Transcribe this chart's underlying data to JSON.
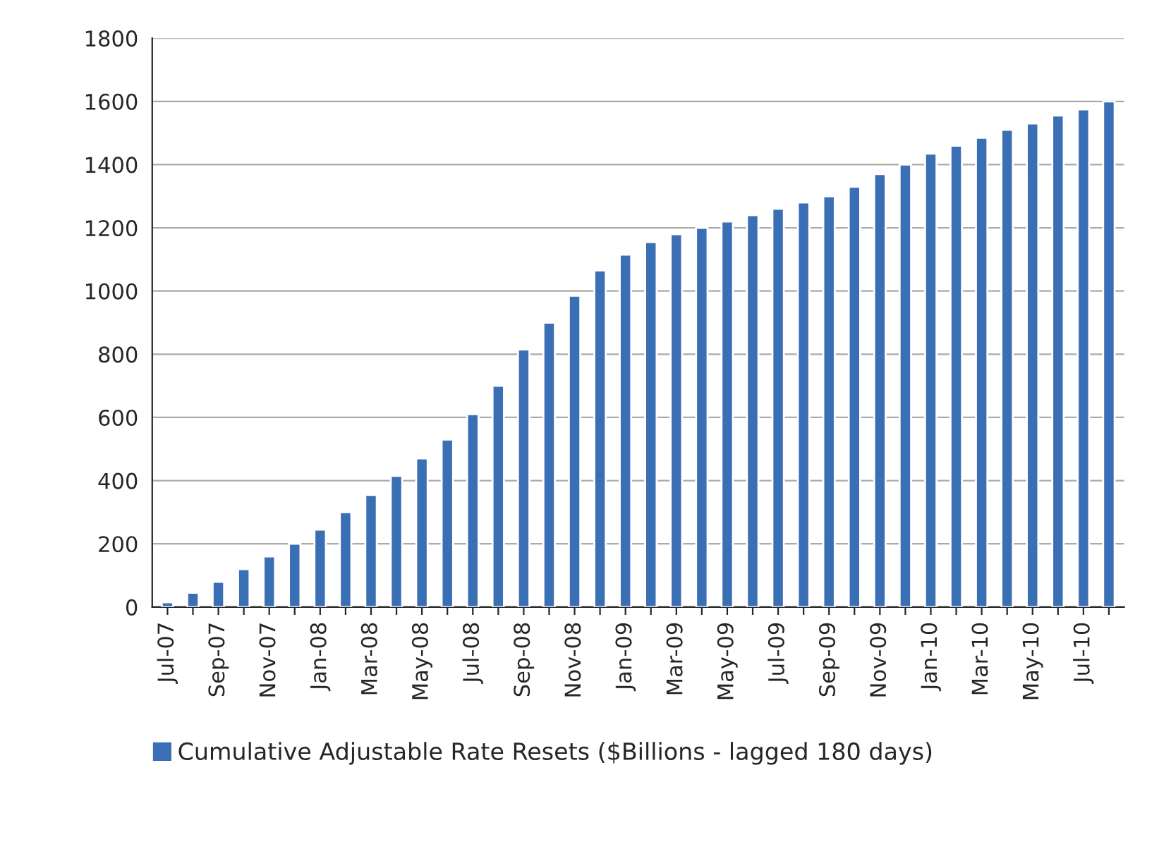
{
  "chart_data": {
    "type": "bar",
    "categories": [
      "Jul-07",
      null,
      "Sep-07",
      null,
      "Nov-07",
      null,
      "Jan-08",
      null,
      "Mar-08",
      null,
      "May-08",
      null,
      "Jul-08",
      null,
      "Sep-08",
      null,
      "Nov-08",
      null,
      "Jan-09",
      null,
      "Mar-09",
      null,
      "May-09",
      null,
      "Jul-09",
      null,
      "Sep-09",
      null,
      "Nov-09",
      null,
      "Jan-10",
      null,
      "Mar-10",
      null,
      "May-10",
      null,
      "Jul-10",
      null
    ],
    "series": [
      {
        "name": "Cumulative Adjustable Rate Resets ($Billions - lagged 180 days)",
        "color": "#3a6eb5",
        "values": [
          15,
          45,
          80,
          120,
          160,
          200,
          245,
          300,
          355,
          415,
          470,
          530,
          610,
          700,
          815,
          900,
          985,
          1065,
          1115,
          1155,
          1180,
          1200,
          1220,
          1240,
          1260,
          1280,
          1300,
          1330,
          1370,
          1400,
          1435,
          1460,
          1485,
          1510,
          1530,
          1555,
          1575,
          1600
        ]
      }
    ],
    "ylim": [
      0,
      1800
    ],
    "yticks": [
      0,
      200,
      400,
      600,
      800,
      1000,
      1200,
      1400,
      1600,
      1800
    ],
    "grid": "y",
    "legend": "bottom"
  }
}
